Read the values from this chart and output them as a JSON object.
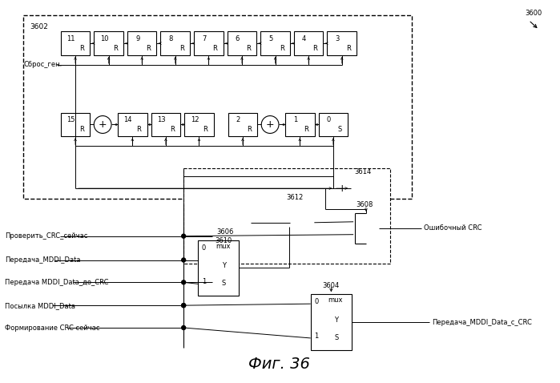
{
  "title": "Фиг. 36",
  "bg_color": "#ffffff",
  "sbros_gen": "Сброс_ген.",
  "oshibochny_crc": "Ошибочный CRC",
  "peredacha_c_crc": "Передача_MDDI_Data_c_CRC",
  "label_3600": "3600",
  "label_3602": "3602",
  "label_3604": "3604",
  "label_3606": "3606",
  "label_3608": "3608",
  "label_3610": "3610",
  "label_3612": "3612",
  "label_3614": "3614",
  "left_labels": [
    "Проверить_CRC_сейчас",
    "Передача_MDDI_Data",
    "Передача MDDI_Data_до_CRC",
    "Посылка MDDI_Data",
    "Формирование CRC сейчас"
  ],
  "top_regs": [
    "11",
    "10",
    "9",
    "8",
    "7",
    "6",
    "5",
    "4",
    "3"
  ],
  "bot_regs_left": [
    "15",
    "14",
    "13",
    "12"
  ],
  "bot_regs_right": [
    "2",
    "1",
    "0"
  ],
  "bot_regs_right_types": [
    "R",
    "R",
    "S"
  ]
}
